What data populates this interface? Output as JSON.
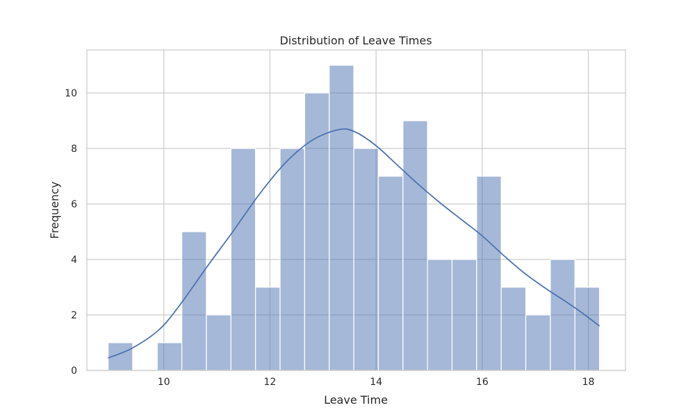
{
  "chart_data": {
    "type": "bar",
    "title": "Distribution of Leave Times",
    "xlabel": "Leave Time",
    "ylabel": "Frequency",
    "xlim": [
      8.55,
      18.7
    ],
    "ylim": [
      0,
      11.55
    ],
    "x_ticks": [
      10,
      12,
      14,
      16,
      18
    ],
    "y_ticks": [
      0,
      2,
      4,
      6,
      8,
      10
    ],
    "grid": true,
    "bin_edges": [
      8.95,
      9.413,
      9.876,
      10.339,
      10.802,
      11.265,
      11.728,
      12.191,
      12.654,
      13.117,
      13.58,
      14.043,
      14.506,
      14.969,
      15.432,
      15.895,
      16.358,
      16.821,
      17.284,
      17.747,
      18.21
    ],
    "counts": [
      1,
      0,
      1,
      5,
      2,
      8,
      3,
      8,
      10,
      11,
      8,
      7,
      9,
      4,
      4,
      7,
      3,
      2,
      4,
      3
    ],
    "kde": {
      "x": [
        8.95,
        9.4,
        9.9,
        10.3,
        10.8,
        11.3,
        11.8,
        12.3,
        12.8,
        13.3,
        13.6,
        14.0,
        14.4,
        14.8,
        15.2,
        15.6,
        16.0,
        16.4,
        16.8,
        17.2,
        17.6,
        17.9,
        18.21
      ],
      "y": [
        0.45,
        0.8,
        1.45,
        2.35,
        3.7,
        5.0,
        6.35,
        7.5,
        8.3,
        8.68,
        8.6,
        8.1,
        7.4,
        6.7,
        6.05,
        5.45,
        4.85,
        4.15,
        3.5,
        2.95,
        2.45,
        2.05,
        1.6
      ]
    },
    "colors": {
      "bar_fill": "#4c72b0",
      "bar_opacity": 0.5,
      "line": "#4c72b0",
      "grid": "#cccccc",
      "axes_edge": "#cccccc"
    }
  }
}
